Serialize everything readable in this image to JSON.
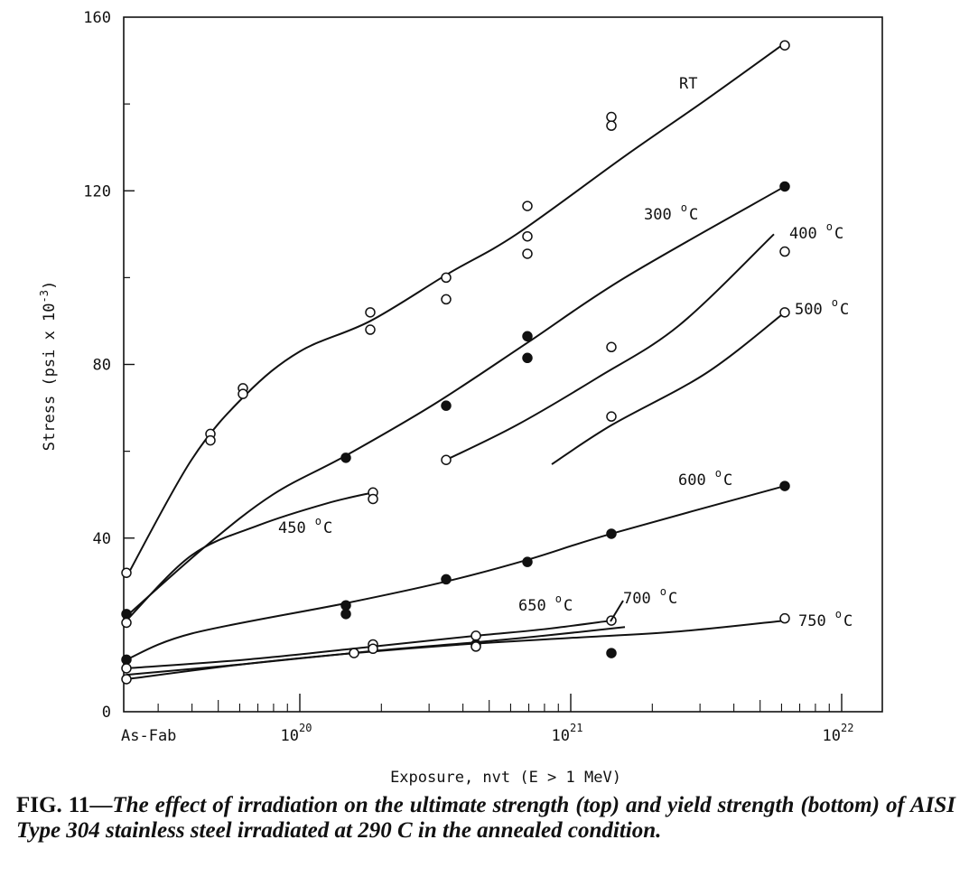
{
  "chart_data": {
    "type": "line",
    "ylabel": "Stress (psi x 10",
    "ylabel_exponent": "-3",
    "ylabel_close": ")",
    "xlabel": "Exposure, nvt (E > 1 MeV)",
    "ylim": [
      0,
      160
    ],
    "yticks": [
      "0",
      "40",
      "80",
      "120",
      "160"
    ],
    "x_scale": "log",
    "xlim_exponent": [
      19.35,
      22.15
    ],
    "x_origin_label": "As-Fab",
    "xticks": [
      {
        "base": "10",
        "exp": "20",
        "value_exponent": 20
      },
      {
        "base": "10",
        "exp": "21",
        "value_exponent": 21
      },
      {
        "base": "10",
        "exp": "22",
        "value_exponent": 22
      }
    ],
    "grid": false,
    "series": [
      {
        "name": "RT",
        "label_base": "RT",
        "label_exp": "",
        "label_unit": "",
        "curve": [
          [
            0,
            31
          ],
          [
            19.6,
            58
          ],
          [
            19.8,
            73
          ],
          [
            20.0,
            83
          ],
          [
            20.26,
            90
          ],
          [
            20.55,
            101
          ],
          [
            20.8,
            110
          ],
          [
            21.2,
            128
          ],
          [
            21.5,
            141
          ],
          [
            21.79,
            154
          ]
        ],
        "points": [
          {
            "x": 0,
            "y": 32,
            "filled": false
          },
          {
            "x": 19.67,
            "y": 64,
            "filled": false
          },
          {
            "x": 19.67,
            "y": 62.5,
            "filled": false
          },
          {
            "x": 19.79,
            "y": 74.5,
            "filled": false
          },
          {
            "x": 19.79,
            "y": 73.2,
            "filled": false
          },
          {
            "x": 20.26,
            "y": 92,
            "filled": false
          },
          {
            "x": 20.26,
            "y": 88,
            "filled": false
          },
          {
            "x": 20.54,
            "y": 100,
            "filled": false
          },
          {
            "x": 20.54,
            "y": 95,
            "filled": false
          },
          {
            "x": 20.84,
            "y": 116.5,
            "filled": false
          },
          {
            "x": 20.84,
            "y": 109.5,
            "filled": false
          },
          {
            "x": 20.84,
            "y": 105.5,
            "filled": false
          },
          {
            "x": 21.15,
            "y": 137,
            "filled": false
          },
          {
            "x": 21.15,
            "y": 135,
            "filled": false
          },
          {
            "x": 21.79,
            "y": 153.5,
            "filled": false
          }
        ]
      },
      {
        "name": "300 °C",
        "label_base": "300",
        "label_exp": "o",
        "label_unit": "C",
        "curve": [
          [
            0,
            22
          ],
          [
            19.65,
            38
          ],
          [
            19.9,
            50
          ],
          [
            20.17,
            59
          ],
          [
            20.5,
            71
          ],
          [
            20.84,
            85
          ],
          [
            21.2,
            100
          ],
          [
            21.79,
            121
          ]
        ],
        "points": [
          {
            "x": 0,
            "y": 22.5,
            "filled": true
          },
          {
            "x": 20.17,
            "y": 58.5,
            "filled": true
          },
          {
            "x": 20.54,
            "y": 70.5,
            "filled": true
          },
          {
            "x": 20.84,
            "y": 86.5,
            "filled": true
          },
          {
            "x": 20.84,
            "y": 81.5,
            "filled": true
          },
          {
            "x": 21.79,
            "y": 121,
            "filled": true
          }
        ]
      },
      {
        "name": "400 °C",
        "label_base": "400",
        "label_exp": "o",
        "label_unit": "C",
        "curve": [
          [
            20.54,
            58
          ],
          [
            20.8,
            66
          ],
          [
            21.1,
            77
          ],
          [
            21.4,
            89
          ],
          [
            21.75,
            110
          ]
        ],
        "points": [
          {
            "x": 20.54,
            "y": 58,
            "filled": false
          },
          {
            "x": 21.15,
            "y": 84,
            "filled": false
          },
          {
            "x": 21.79,
            "y": 106,
            "filled": false
          }
        ]
      },
      {
        "name": "500 °C",
        "label_base": "500",
        "label_exp": "o",
        "label_unit": "C",
        "curve": [
          [
            20.93,
            57
          ],
          [
            21.15,
            66
          ],
          [
            21.5,
            78
          ],
          [
            21.79,
            92
          ]
        ],
        "points": [
          {
            "x": 21.15,
            "y": 68,
            "filled": false
          },
          {
            "x": 21.79,
            "y": 92,
            "filled": false
          }
        ]
      },
      {
        "name": "450 °C",
        "label_base": "450",
        "label_exp": "o",
        "label_unit": "C",
        "curve": [
          [
            0,
            21
          ],
          [
            19.6,
            36
          ],
          [
            19.85,
            43
          ],
          [
            20.1,
            48
          ],
          [
            20.27,
            50.5
          ]
        ],
        "points": [
          {
            "x": 0,
            "y": 20.5,
            "filled": false
          },
          {
            "x": 20.27,
            "y": 50.5,
            "filled": false
          },
          {
            "x": 20.27,
            "y": 49,
            "filled": false
          }
        ]
      },
      {
        "name": "600 °C",
        "label_base": "600",
        "label_exp": "o",
        "label_unit": "C",
        "curve": [
          [
            0,
            12
          ],
          [
            19.6,
            18
          ],
          [
            20.17,
            25
          ],
          [
            20.54,
            30
          ],
          [
            20.84,
            35
          ],
          [
            21.15,
            41
          ],
          [
            21.79,
            52
          ]
        ],
        "points": [
          {
            "x": 0,
            "y": 12,
            "filled": true
          },
          {
            "x": 20.17,
            "y": 24.5,
            "filled": true
          },
          {
            "x": 20.17,
            "y": 22.5,
            "filled": true
          },
          {
            "x": 20.54,
            "y": 30.5,
            "filled": true
          },
          {
            "x": 20.84,
            "y": 34.5,
            "filled": true
          },
          {
            "x": 21.15,
            "y": 41,
            "filled": true
          },
          {
            "x": 21.79,
            "y": 52,
            "filled": true
          }
        ]
      },
      {
        "name": "650 °C",
        "label_base": "650",
        "label_exp": "o",
        "label_unit": "C",
        "curve": [
          [
            0,
            10
          ],
          [
            19.8,
            12
          ],
          [
            20.27,
            15
          ],
          [
            20.65,
            17.5
          ],
          [
            20.9,
            19
          ],
          [
            21.15,
            21
          ]
        ],
        "points": [
          {
            "x": 0,
            "y": 10,
            "filled": false
          },
          {
            "x": 20.27,
            "y": 15.5,
            "filled": false
          },
          {
            "x": 20.65,
            "y": 17.5,
            "filled": false
          },
          {
            "x": 21.15,
            "y": 21,
            "filled": false
          }
        ]
      },
      {
        "name": "700 °C",
        "label_base": "700",
        "label_exp": "o",
        "label_unit": "C",
        "curve": [
          [
            0,
            8.5
          ],
          [
            19.8,
            11
          ],
          [
            20.27,
            14
          ],
          [
            20.65,
            16
          ],
          [
            20.9,
            17.5
          ],
          [
            21.2,
            19.5
          ]
        ],
        "points": [
          {
            "x": 20.27,
            "y": 14.5,
            "filled": false
          },
          {
            "x": 20.65,
            "y": 15.5,
            "filled": true
          },
          {
            "x": 21.15,
            "y": 13.5,
            "filled": true
          }
        ]
      },
      {
        "name": "750 °C",
        "label_base": "750",
        "label_exp": "o",
        "label_unit": "C",
        "curve": [
          [
            0,
            7.5
          ],
          [
            19.8,
            11
          ],
          [
            20.2,
            13.5
          ],
          [
            20.6,
            15.5
          ],
          [
            21.0,
            17
          ],
          [
            21.4,
            18.5
          ],
          [
            21.79,
            21
          ]
        ],
        "points": [
          {
            "x": 0,
            "y": 7.5,
            "filled": false
          },
          {
            "x": 20.2,
            "y": 13.5,
            "filled": false
          },
          {
            "x": 20.65,
            "y": 15,
            "filled": false
          },
          {
            "x": 21.79,
            "y": 21.5,
            "filled": false
          }
        ]
      }
    ]
  },
  "caption": {
    "fig_label": "FIG. 11—",
    "text": "The effect of irradiation on the ultimate strength (top) and yield strength (bottom) of AISI Type 304 stainless steel irradiated at 290 C in the annealed condition."
  }
}
